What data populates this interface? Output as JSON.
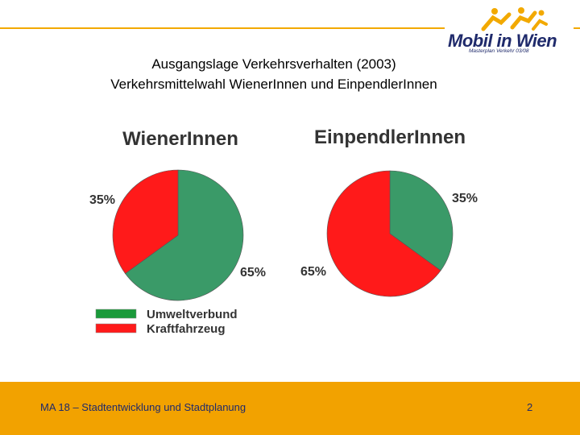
{
  "header": {
    "logo_text": "Mobil in Wien",
    "logo_subtext": "Masterplan Verkehr 03/08"
  },
  "slide": {
    "title_line1": "Ausgangslage Verkehrsverhalten (2003)",
    "title_line2": "Verkehrsmittelwahl WienerInnen und EinpendlerInnen"
  },
  "colors": {
    "accent": "#f2a900",
    "umweltverbund": "#3a9a68",
    "kraftfahrzeug": "#ff1a1a",
    "legend_umweltverbund": "#1a9a3a"
  },
  "chart_data": [
    {
      "type": "pie",
      "title": "WienerInnen",
      "categories": [
        "Umweltverbund",
        "Kraftfahrzeug"
      ],
      "values": [
        65,
        35
      ],
      "labels": [
        "65%",
        "35%"
      ]
    },
    {
      "type": "pie",
      "title": "EinpendlerInnen",
      "categories": [
        "Umweltverbund",
        "Kraftfahrzeug"
      ],
      "values": [
        35,
        65
      ],
      "labels": [
        "35%",
        "65%"
      ]
    }
  ],
  "legend": {
    "items": [
      "Umweltverbund",
      "Kraftfahrzeug"
    ]
  },
  "footer": {
    "text": "MA 18 – Stadtentwicklung und Stadtplanung",
    "page_number": "2"
  }
}
